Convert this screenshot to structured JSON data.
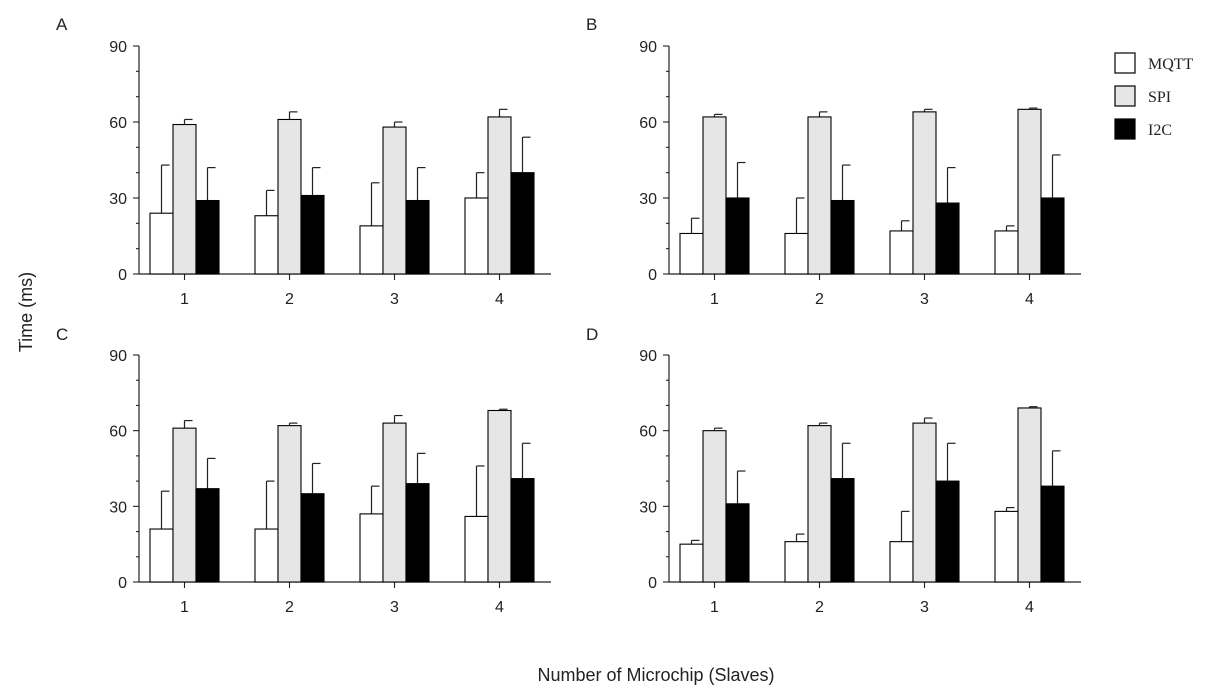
{
  "figure": {
    "ylabel": "Time (ms)",
    "xlabel": "Number of Microchip (Slaves)"
  },
  "legend": {
    "position": "top-right",
    "items": [
      {
        "name": "MQTT",
        "color": "#ffffff"
      },
      {
        "name": "SPI",
        "color": "#e6e6e6"
      },
      {
        "name": "I2C",
        "color": "#000000"
      }
    ]
  },
  "chart_data": [
    {
      "type": "bar",
      "title": "A",
      "categories": [
        "1",
        "2",
        "3",
        "4"
      ],
      "ylim": [
        0,
        90
      ],
      "yticks": [
        0,
        30,
        60,
        90
      ],
      "series": [
        {
          "name": "MQTT",
          "values": [
            24,
            23,
            19,
            30
          ],
          "errors": [
            19,
            10,
            17,
            10
          ]
        },
        {
          "name": "SPI",
          "values": [
            59,
            61,
            58,
            62
          ],
          "errors": [
            2,
            3,
            2,
            3
          ]
        },
        {
          "name": "I2C",
          "values": [
            29,
            31,
            29,
            40
          ],
          "errors": [
            13,
            11,
            13,
            14
          ]
        }
      ]
    },
    {
      "type": "bar",
      "title": "B",
      "categories": [
        "1",
        "2",
        "3",
        "4"
      ],
      "ylim": [
        0,
        90
      ],
      "yticks": [
        0,
        30,
        60,
        90
      ],
      "series": [
        {
          "name": "MQTT",
          "values": [
            16,
            16,
            17,
            17
          ],
          "errors": [
            6,
            14,
            4,
            2
          ]
        },
        {
          "name": "SPI",
          "values": [
            62,
            62,
            64,
            65
          ],
          "errors": [
            1,
            2,
            1,
            0.5
          ]
        },
        {
          "name": "I2C",
          "values": [
            30,
            29,
            28,
            30
          ],
          "errors": [
            14,
            14,
            14,
            17
          ]
        }
      ]
    },
    {
      "type": "bar",
      "title": "C",
      "categories": [
        "1",
        "2",
        "3",
        "4"
      ],
      "ylim": [
        0,
        90
      ],
      "yticks": [
        0,
        30,
        60,
        90
      ],
      "series": [
        {
          "name": "MQTT",
          "values": [
            21,
            21,
            27,
            26
          ],
          "errors": [
            15,
            19,
            11,
            20
          ]
        },
        {
          "name": "SPI",
          "values": [
            61,
            62,
            63,
            68
          ],
          "errors": [
            3,
            1,
            3,
            0.5
          ]
        },
        {
          "name": "I2C",
          "values": [
            37,
            35,
            39,
            41
          ],
          "errors": [
            12,
            12,
            12,
            14
          ]
        }
      ]
    },
    {
      "type": "bar",
      "title": "D",
      "categories": [
        "1",
        "2",
        "3",
        "4"
      ],
      "ylim": [
        0,
        90
      ],
      "yticks": [
        0,
        30,
        60,
        90
      ],
      "series": [
        {
          "name": "MQTT",
          "values": [
            15,
            16,
            16,
            28
          ],
          "errors": [
            1.5,
            3,
            12,
            1.5
          ]
        },
        {
          "name": "SPI",
          "values": [
            60,
            62,
            63,
            69
          ],
          "errors": [
            1,
            1,
            2,
            0.5
          ]
        },
        {
          "name": "I2C",
          "values": [
            31,
            41,
            40,
            38
          ],
          "errors": [
            13,
            14,
            15,
            14
          ]
        }
      ]
    }
  ]
}
